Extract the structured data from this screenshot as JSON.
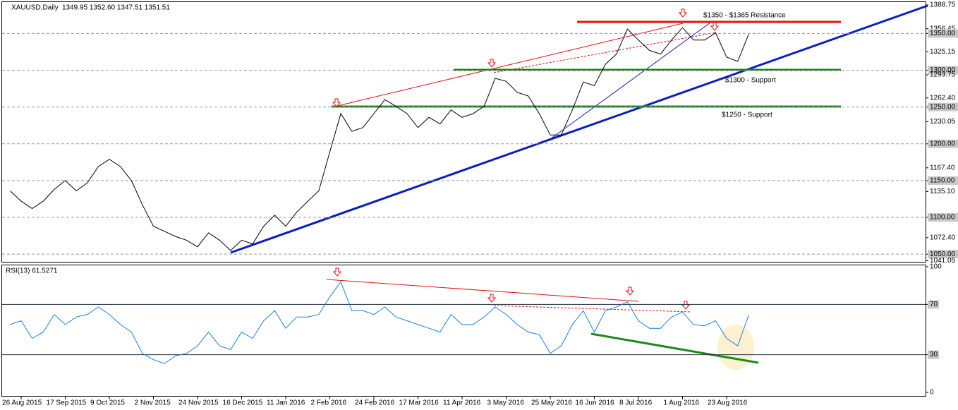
{
  "chart_data": [
    {
      "type": "line",
      "title": "XAUUSD,Daily",
      "subtitle": "1349.95 1352.60 1347.51 1351.51",
      "color": "#000000",
      "categories": [
        null,
        "26 Aug 2015",
        null,
        null,
        null,
        "17 Sep 2015",
        null,
        null,
        null,
        "9 Oct 2015",
        null,
        null,
        null,
        "2 Nov 2015",
        null,
        null,
        null,
        "24 Nov 2015",
        null,
        null,
        null,
        "16 Dec 2015",
        null,
        null,
        null,
        "11 Jan 2016",
        null,
        null,
        null,
        "2 Feb 2016",
        null,
        null,
        null,
        "24 Feb 2016",
        null,
        null,
        null,
        "17 Mar 2016",
        null,
        null,
        null,
        "11 Apr 2016",
        null,
        null,
        null,
        "3 May 2016",
        null,
        null,
        null,
        "25 May 2016",
        null,
        null,
        null,
        "16 Jun 2016",
        null,
        null,
        null,
        "8 Jul 2016",
        null,
        null,
        null,
        "1 Aug 2016",
        null,
        null,
        null,
        "23 Aug 2016",
        null,
        null
      ],
      "values": [
        1136,
        1122,
        1112,
        1122,
        1138,
        1150,
        1136,
        1147,
        1169,
        1179,
        1169,
        1150,
        1117,
        1088,
        1081,
        1074,
        1069,
        1060,
        1079,
        1069,
        1055,
        1069,
        1064,
        1088,
        1103,
        1088,
        1107,
        1122,
        1136,
        1189,
        1241,
        1217,
        1222,
        1241,
        1260,
        1251,
        1241,
        1222,
        1236,
        1227,
        1246,
        1236,
        1241,
        1251,
        1289,
        1285,
        1270,
        1265,
        1241,
        1212,
        1212,
        1246,
        1284,
        1279,
        1308,
        1322,
        1356,
        1341,
        1327,
        1322,
        1341,
        1358,
        1341,
        1341,
        1351,
        1318,
        1312,
        1349
      ],
      "ylim": [
        1041.05,
        1388.75
      ],
      "yticks": [
        {
          "value": 1388.75,
          "label": "1388.75"
        },
        {
          "value": 1356.45,
          "label": "1356.45"
        },
        {
          "value": 1350,
          "label": "1350.00"
        },
        {
          "value": 1325.15,
          "label": "1325.15"
        },
        {
          "value": 1300,
          "label": "1300.00"
        },
        {
          "value": 1293.75,
          "label": "1293.75"
        },
        {
          "value": 1262.4,
          "label": "1262.40"
        },
        {
          "value": 1250,
          "label": "1250.00"
        },
        {
          "value": 1230.05,
          "label": "1230.05"
        },
        {
          "value": 1200,
          "label": "1200.00"
        },
        {
          "value": 1167.4,
          "label": "1167.40"
        },
        {
          "value": 1150,
          "label": "1150.00"
        },
        {
          "value": 1135.1,
          "label": "1135.10"
        },
        {
          "value": 1100,
          "label": "1100.00"
        },
        {
          "value": 1072.4,
          "label": "1072.40"
        },
        {
          "value": 1050,
          "label": "1050.00"
        },
        {
          "value": 1041.05,
          "label": "1041.05"
        }
      ],
      "annotations": [
        "$1350 - $1365 Resistance",
        "$1300 - Support",
        "$1250 - Support"
      ]
    },
    {
      "type": "line",
      "title": "RSI(13) 61.5271",
      "color": "#1e7fd8",
      "values": [
        54,
        57,
        43,
        48,
        62,
        54,
        60,
        62,
        68,
        62,
        54,
        48,
        31,
        26,
        23,
        29,
        31,
        37,
        48,
        37,
        34,
        48,
        43,
        57,
        65,
        51,
        60,
        60,
        62,
        76,
        88,
        65,
        65,
        62,
        68,
        60,
        57,
        54,
        51,
        48,
        62,
        54,
        54,
        60,
        68,
        62,
        54,
        48,
        46,
        31,
        37,
        54,
        65,
        48,
        65,
        68,
        72,
        57,
        51,
        51,
        60,
        64,
        54,
        53,
        57,
        43,
        37,
        61.5
      ],
      "ylim": [
        0,
        100
      ],
      "yticks": [
        0,
        30,
        70,
        100
      ]
    }
  ]
}
